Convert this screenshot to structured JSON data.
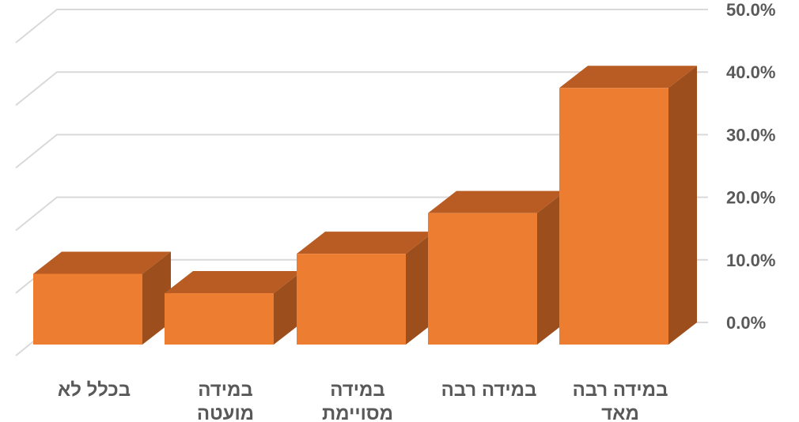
{
  "chart_data": {
    "type": "bar",
    "style": "3d-column",
    "categories": [
      [
        "בכלל לא"
      ],
      [
        "במידה",
        "מועטה"
      ],
      [
        "במידה",
        "מסויימת"
      ],
      [
        "במידה רבה"
      ],
      [
        "במידה רבה",
        "מאד"
      ]
    ],
    "values": [
      11.3,
      8.2,
      14.5,
      21.0,
      41.0
    ],
    "y_ticks": [
      "0.0%",
      "10.0%",
      "20.0%",
      "30.0%",
      "40.0%",
      "50.0%"
    ],
    "ylim": [
      0,
      50
    ],
    "y_axis_position": "right",
    "category_order": "right-to-left",
    "grid": true,
    "colors": {
      "front": "#ED7D31",
      "top": "#B85C23",
      "side": "#9C4E1D",
      "grid": "#D9D9D9",
      "text": "#595959"
    }
  }
}
